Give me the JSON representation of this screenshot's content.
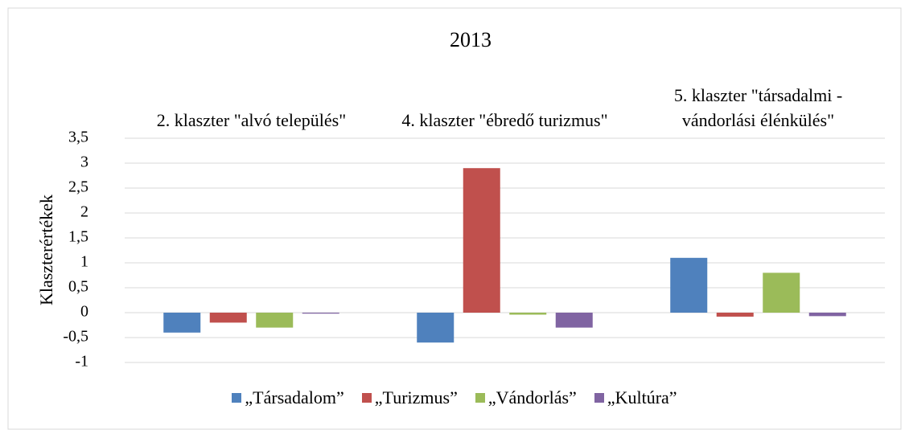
{
  "chart_data": {
    "type": "bar",
    "title": "2013",
    "ylabel": "Klaszterértékek",
    "categories": [
      "2. klaszter \"alvó település\"",
      "4. klaszter \"ébredő turizmus\"",
      "5. klaszter \"társadalmi - vándorlási élénkülés\""
    ],
    "series": [
      {
        "name": "„Társadalom”",
        "color": "#4f81bd",
        "values": [
          -0.4,
          -0.6,
          1.1
        ]
      },
      {
        "name": "„Turizmus”",
        "color": "#c0504d",
        "values": [
          -0.2,
          2.9,
          -0.08
        ]
      },
      {
        "name": "„Vándorlás”",
        "color": "#9bbb59",
        "values": [
          -0.3,
          -0.04,
          0.8
        ]
      },
      {
        "name": "„Kultúra”",
        "color": "#8064a2",
        "values": [
          -0.02,
          -0.3,
          -0.07
        ]
      }
    ],
    "ylim": [
      -1,
      3.5
    ],
    "yticks": [
      -1,
      {
        "value": -0.5,
        "label": "-0,5"
      },
      0,
      {
        "value": 0.5,
        "label": "0,5"
      },
      1,
      {
        "value": 1.5,
        "label": "1,5"
      },
      2,
      {
        "value": 2.5,
        "label": "2,5"
      },
      3,
      {
        "value": 3.5,
        "label": "3,5"
      }
    ],
    "grid": true,
    "legend": "bottom"
  }
}
